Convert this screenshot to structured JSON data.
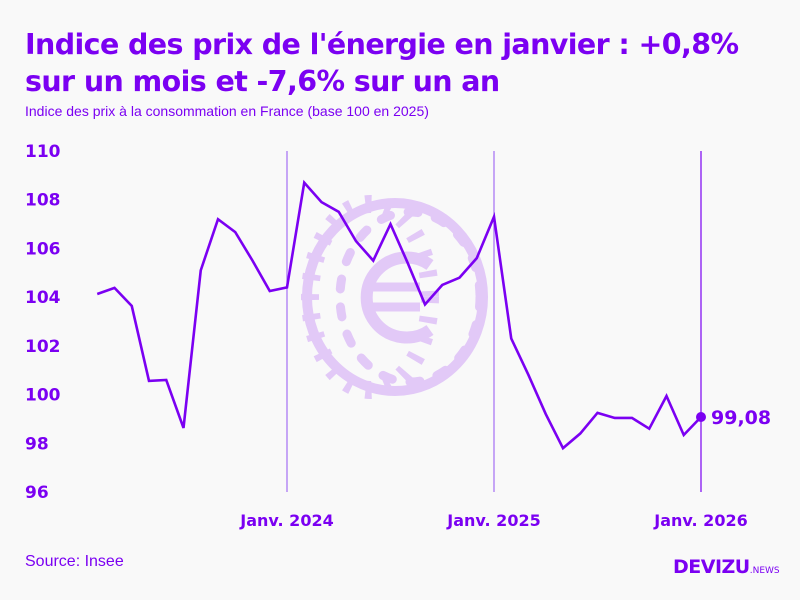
{
  "title": "Indice des prix de l'énergie en janvier : +0,8% sur un mois et -7,6% sur un an",
  "subtitle": "Indice des prix à la consommation en France (base 100 en 2025)",
  "source": "Source: Insee",
  "logo": {
    "main": "DEVIZU",
    "sub": ".NEWS"
  },
  "colors": {
    "line": "#7b00f2",
    "marker_lines": "#a46ef5",
    "watermark": "#e2c9f7",
    "text": "#7b00f2"
  },
  "watermark_icon": "euro-coin-icon",
  "chart_data": {
    "type": "line",
    "title": "",
    "xlabel": "",
    "ylabel": "",
    "ylim": [
      96,
      110
    ],
    "yticks": [
      "110",
      "108",
      "106",
      "104",
      "102",
      "100",
      "98",
      "96"
    ],
    "grid": false,
    "x_tick_labels": [
      {
        "label": "Janv. 2024",
        "date": "2024-01"
      },
      {
        "label": "Janv. 2025",
        "date": "2025-01"
      },
      {
        "label": "Janv. 2026",
        "date": "2026-01"
      }
    ],
    "x": [
      "2023-02",
      "2023-03",
      "2023-04",
      "2023-05",
      "2023-06",
      "2023-07",
      "2023-08",
      "2023-09",
      "2023-10",
      "2023-11",
      "2023-12",
      "2024-01",
      "2024-02",
      "2024-03",
      "2024-04",
      "2024-05",
      "2024-06",
      "2024-07",
      "2024-08",
      "2024-09",
      "2024-10",
      "2024-11",
      "2024-12",
      "2025-01",
      "2025-02",
      "2025-03",
      "2025-04",
      "2025-05",
      "2025-06",
      "2025-07",
      "2025-08",
      "2025-09",
      "2025-10",
      "2025-11",
      "2025-12",
      "2026-01"
    ],
    "values": [
      104.13,
      104.38,
      103.64,
      100.56,
      100.6,
      98.63,
      105.1,
      107.2,
      106.67,
      105.5,
      104.25,
      104.4,
      108.7,
      107.9,
      107.5,
      106.3,
      105.5,
      107.0,
      105.4,
      103.7,
      104.5,
      104.8,
      105.6,
      107.3,
      102.3,
      100.8,
      99.2,
      97.8,
      98.4,
      99.25,
      99.04,
      99.04,
      98.6,
      99.94,
      98.34,
      99.08
    ],
    "last_value_label": "99,08"
  }
}
